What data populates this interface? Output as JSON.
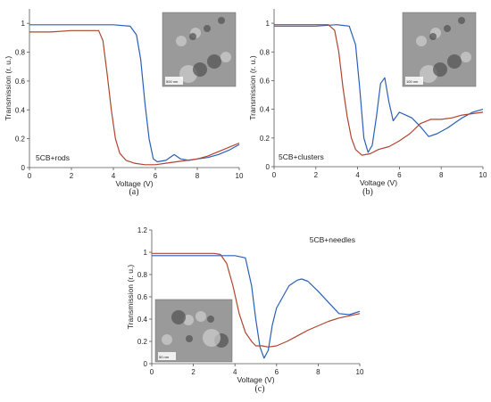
{
  "colors": {
    "blue": "#2a5fb8",
    "red": "#b0452e"
  },
  "chart_data": [
    {
      "type": "line",
      "panel_label": "(a)",
      "annotation": "5CB+rods",
      "xlabel": "Voltage (V)",
      "ylabel": "Transmission (r. u.)",
      "xlim": [
        0,
        10
      ],
      "ylim": [
        0,
        1.1
      ],
      "xticks": [
        "0",
        "2",
        "4",
        "6",
        "8",
        "10"
      ],
      "yticks": [
        "0",
        "0.2",
        "0.4",
        "0.6",
        "0.8",
        "1"
      ],
      "inset": {
        "type": "micrograph",
        "scale_bar": "500 nm"
      },
      "series": [
        {
          "color": "blue",
          "x": [
            0,
            1,
            2,
            3,
            4,
            4.8,
            5.1,
            5.3,
            5.5,
            5.7,
            5.9,
            6.1,
            6.5,
            6.9,
            7.2,
            7.6,
            8,
            8.5,
            9,
            9.5,
            10
          ],
          "y": [
            0.99,
            0.99,
            0.99,
            0.99,
            0.99,
            0.98,
            0.92,
            0.75,
            0.45,
            0.2,
            0.06,
            0.04,
            0.05,
            0.09,
            0.06,
            0.05,
            0.06,
            0.07,
            0.09,
            0.12,
            0.16
          ]
        },
        {
          "color": "red",
          "x": [
            0,
            1,
            2,
            3,
            3.3,
            3.5,
            3.7,
            3.9,
            4.1,
            4.3,
            4.6,
            5,
            5.5,
            6,
            6.5,
            7,
            7.5,
            8,
            8.5,
            9,
            9.5,
            10
          ],
          "y": [
            0.94,
            0.94,
            0.95,
            0.95,
            0.95,
            0.88,
            0.65,
            0.4,
            0.2,
            0.1,
            0.05,
            0.03,
            0.02,
            0.02,
            0.03,
            0.04,
            0.05,
            0.06,
            0.08,
            0.11,
            0.14,
            0.17
          ]
        }
      ]
    },
    {
      "type": "line",
      "panel_label": "(b)",
      "annotation": "5CB+clusters",
      "xlabel": "Voltage (V)",
      "ylabel": "Transmission (r. u.)",
      "xlim": [
        0,
        10
      ],
      "ylim": [
        0,
        1.1
      ],
      "xticks": [
        "0",
        "2",
        "4",
        "6",
        "8",
        "10"
      ],
      "yticks": [
        "0",
        "0.2",
        "0.4",
        "0.6",
        "0.8",
        "1"
      ],
      "inset": {
        "type": "micrograph",
        "scale_bar": "100 nm"
      },
      "series": [
        {
          "color": "blue",
          "x": [
            0,
            1,
            2,
            3,
            3.6,
            3.9,
            4.1,
            4.3,
            4.5,
            4.7,
            4.9,
            5.1,
            5.3,
            5.5,
            5.7,
            6,
            6.3,
            6.6,
            7,
            7.4,
            7.8,
            8.3,
            9,
            9.5,
            10
          ],
          "y": [
            0.98,
            0.98,
            0.98,
            0.99,
            0.98,
            0.85,
            0.55,
            0.2,
            0.1,
            0.15,
            0.35,
            0.58,
            0.62,
            0.45,
            0.32,
            0.38,
            0.36,
            0.34,
            0.28,
            0.21,
            0.23,
            0.27,
            0.34,
            0.38,
            0.4
          ]
        },
        {
          "color": "red",
          "x": [
            0,
            1,
            2,
            2.6,
            2.9,
            3.1,
            3.3,
            3.5,
            3.7,
            3.9,
            4.2,
            4.6,
            5,
            5.5,
            6,
            6.5,
            7,
            7.5,
            8,
            8.5,
            9,
            9.5,
            10
          ],
          "y": [
            0.99,
            0.99,
            0.99,
            0.99,
            0.95,
            0.8,
            0.55,
            0.35,
            0.2,
            0.12,
            0.08,
            0.09,
            0.12,
            0.14,
            0.18,
            0.23,
            0.3,
            0.33,
            0.33,
            0.34,
            0.36,
            0.37,
            0.38
          ]
        }
      ]
    },
    {
      "type": "line",
      "panel_label": "(c)",
      "annotation": "5CB+needles",
      "xlabel": "Voltage (V)",
      "ylabel": "Transmission (r. u.)",
      "xlim": [
        0,
        10
      ],
      "ylim": [
        0,
        1.2
      ],
      "xticks": [
        "0",
        "2",
        "4",
        "6",
        "8",
        "10"
      ],
      "yticks": [
        "0",
        "0.2",
        "0.4",
        "0.6",
        "0.8",
        "1",
        "1.2"
      ],
      "inset": {
        "type": "micrograph",
        "scale_bar": "50 nm"
      },
      "series": [
        {
          "color": "blue",
          "x": [
            0,
            1,
            2,
            3,
            4,
            4.5,
            4.8,
            5,
            5.2,
            5.4,
            5.6,
            5.8,
            6,
            6.3,
            6.6,
            7,
            7.2,
            7.5,
            8,
            8.5,
            9,
            9.5,
            10
          ],
          "y": [
            0.97,
            0.97,
            0.97,
            0.97,
            0.97,
            0.95,
            0.7,
            0.4,
            0.15,
            0.05,
            0.12,
            0.35,
            0.5,
            0.6,
            0.7,
            0.75,
            0.76,
            0.74,
            0.65,
            0.55,
            0.45,
            0.44,
            0.47
          ]
        },
        {
          "color": "red",
          "x": [
            0,
            1,
            2,
            3,
            3.3,
            3.6,
            3.9,
            4.2,
            4.5,
            4.8,
            5,
            5.3,
            5.6,
            6,
            6.5,
            7,
            7.5,
            8,
            8.5,
            9,
            9.5,
            10
          ],
          "y": [
            0.99,
            0.99,
            0.99,
            0.99,
            0.98,
            0.9,
            0.7,
            0.45,
            0.28,
            0.2,
            0.16,
            0.16,
            0.15,
            0.16,
            0.2,
            0.25,
            0.3,
            0.34,
            0.38,
            0.41,
            0.43,
            0.45
          ]
        }
      ]
    }
  ]
}
